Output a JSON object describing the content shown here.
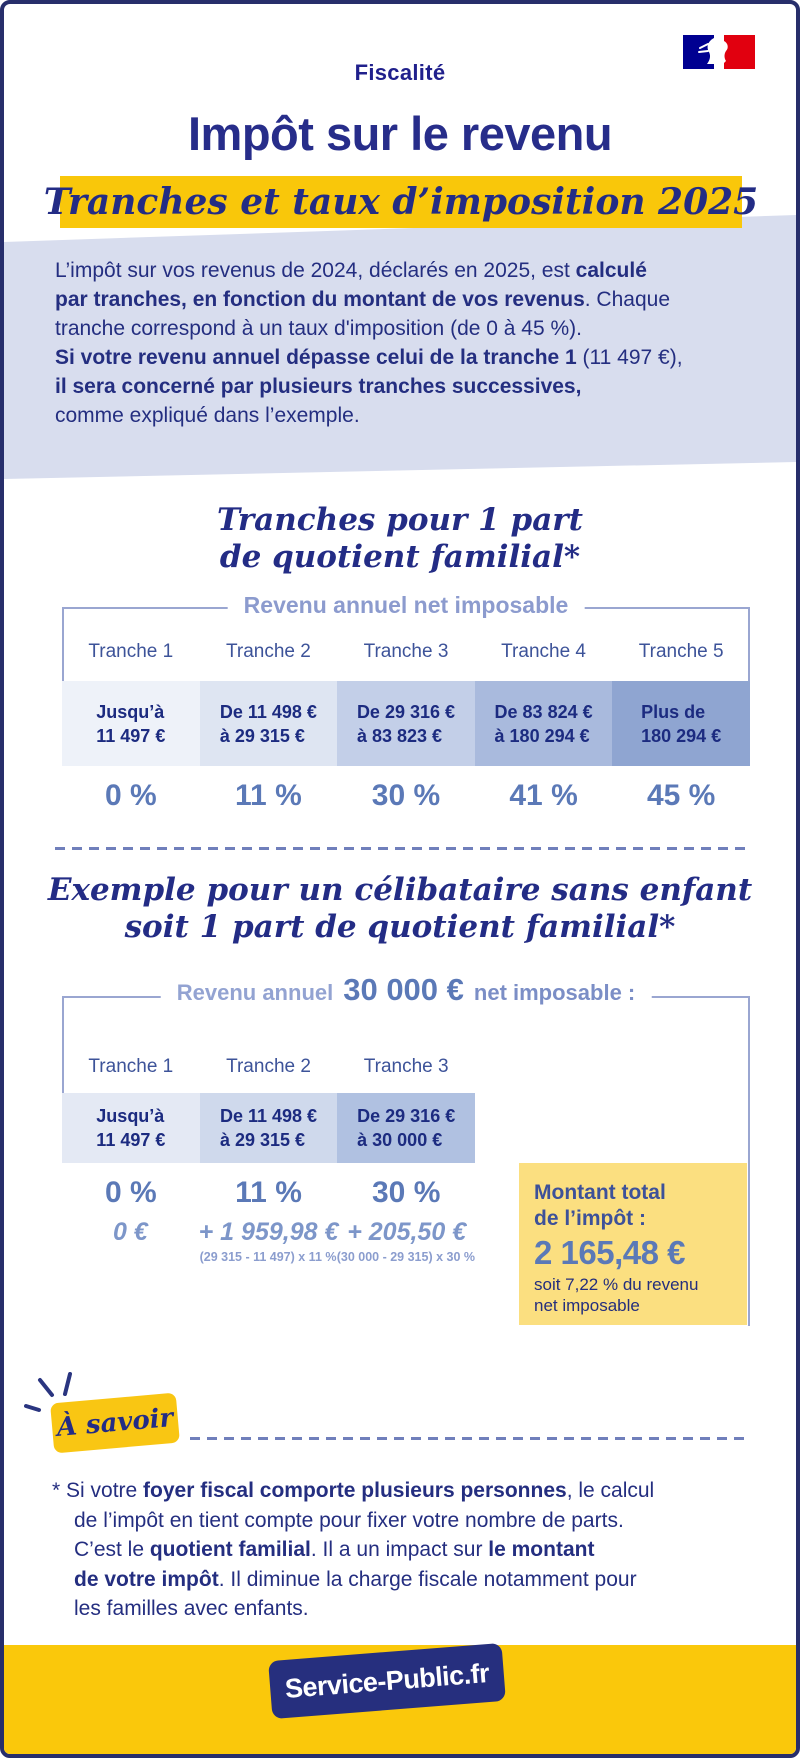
{
  "colors": {
    "navy_text": "#242e7d",
    "title_navy": "#272d8a",
    "gold_band": "#f9c70a",
    "footer_gold": "#fac80b",
    "pale_gold_box": "#fbdf80",
    "lavender_bg": "#d8ddee",
    "slate_blue": "#5b79b7",
    "light_slate": "#8c9bce",
    "flag_blue": "#000091",
    "flag_red": "#e1000f"
  },
  "header": {
    "category": "Fiscalité",
    "title": "Impôt sur le revenu",
    "subtitle": "Tranches et taux d’imposition 2025"
  },
  "intro": {
    "lines": [
      [
        {
          "t": "L’impôt sur vos revenus de 2024, déclarés en 2025, est "
        },
        {
          "t": "calculé",
          "b": true
        }
      ],
      [
        {
          "t": "par tranches, en fonction du montant de vos revenus",
          "b": true
        },
        {
          "t": ". Chaque"
        }
      ],
      [
        {
          "t": "tranche correspond à un taux d'imposition (de 0 à 45 %)."
        }
      ],
      [
        {
          "t": "Si votre revenu annuel dépasse celui de la tranche 1",
          "b": true
        },
        {
          "t": " (11 497 €),"
        }
      ],
      [
        {
          "t": "il sera concerné par plusieurs tranches successives,",
          "b": true
        }
      ],
      [
        {
          "t": "comme expliqué dans l’exemple."
        }
      ]
    ]
  },
  "section1": {
    "title_line1": "Tranches pour 1 part",
    "title_line2": "de quotient familial*",
    "table_label": "Revenu annuel net imposable",
    "columns": [
      {
        "name": "Tranche 1",
        "range_line1": "Jusqu’à",
        "range_line2": "11 497 €",
        "rate": "0 %",
        "bg": "#eef2f9"
      },
      {
        "name": "Tranche 2",
        "range_line1": "De 11 498 €",
        "range_line2": "à 29 315 €",
        "rate": "11 %",
        "bg": "#dee5f2"
      },
      {
        "name": "Tranche 3",
        "range_line1": "De 29 316 €",
        "range_line2": "à 83 823 €",
        "rate": "30 %",
        "bg": "#c3cfe8"
      },
      {
        "name": "Tranche 4",
        "range_line1": "De 83 824 €",
        "range_line2": "à 180 294 €",
        "rate": "41 %",
        "bg": "#a9badd"
      },
      {
        "name": "Tranche 5",
        "range_line1": "Plus de",
        "range_line2": "180 294 €",
        "rate": "45 %",
        "bg": "#8fa5d1"
      }
    ]
  },
  "section2": {
    "title_line1": "Exemple pour un célibataire sans enfant",
    "title_line2": "soit 1 part de quotient familial*",
    "label_prefix": "Revenu annuel",
    "label_amount": "30 000 €",
    "label_suffix": "net imposable :",
    "columns": [
      {
        "name": "Tranche 1",
        "range_line1": "Jusqu’à",
        "range_line2": "11 497 €",
        "rate": "0 %",
        "amount": "0 €",
        "formula": "",
        "bg": "#e4e9f4"
      },
      {
        "name": "Tranche 2",
        "range_line1": "De 11 498 €",
        "range_line2": "à 29 315 €",
        "rate": "11 %",
        "amount": "+ 1 959,98 €",
        "formula": "(29 315 - 11 497) x 11 %",
        "bg": "#cfd9ec"
      },
      {
        "name": "Tranche 3",
        "range_line1": "De 29 316 €",
        "range_line2": "à 30 000 €",
        "rate": "30 %",
        "amount": "+ 205,50 €",
        "formula": "(30 000 - 29 315) x 30 %",
        "bg": "#b0c1e1"
      }
    ],
    "total_box": {
      "title_line1": "Montant total",
      "title_line2": "de l’impôt :",
      "amount": "2 165,48 €",
      "note_line1": "soit 7,22 % du revenu",
      "note_line2": "net imposable",
      "bg": "#fbdf80"
    }
  },
  "a_savoir": {
    "label": "À savoir"
  },
  "footnote": {
    "lines": [
      [
        {
          "t": "* Si votre "
        },
        {
          "t": "foyer fiscal comporte plusieurs personnes",
          "b": true
        },
        {
          "t": ", le calcul"
        }
      ],
      [
        {
          "t": "de l’impôt en tient compte pour fixer votre nombre de parts."
        }
      ],
      [
        {
          "t": "C’est le "
        },
        {
          "t": "quotient familial",
          "b": true
        },
        {
          "t": ". Il a un impact sur "
        },
        {
          "t": "le montant",
          "b": true
        }
      ],
      [
        {
          "t": "de votre impôt",
          "b": true
        },
        {
          "t": ". Il diminue la charge fiscale notamment pour"
        }
      ],
      [
        {
          "t": "les familles avec enfants."
        }
      ]
    ]
  },
  "footer": {
    "brand": "Service-Public.fr"
  }
}
